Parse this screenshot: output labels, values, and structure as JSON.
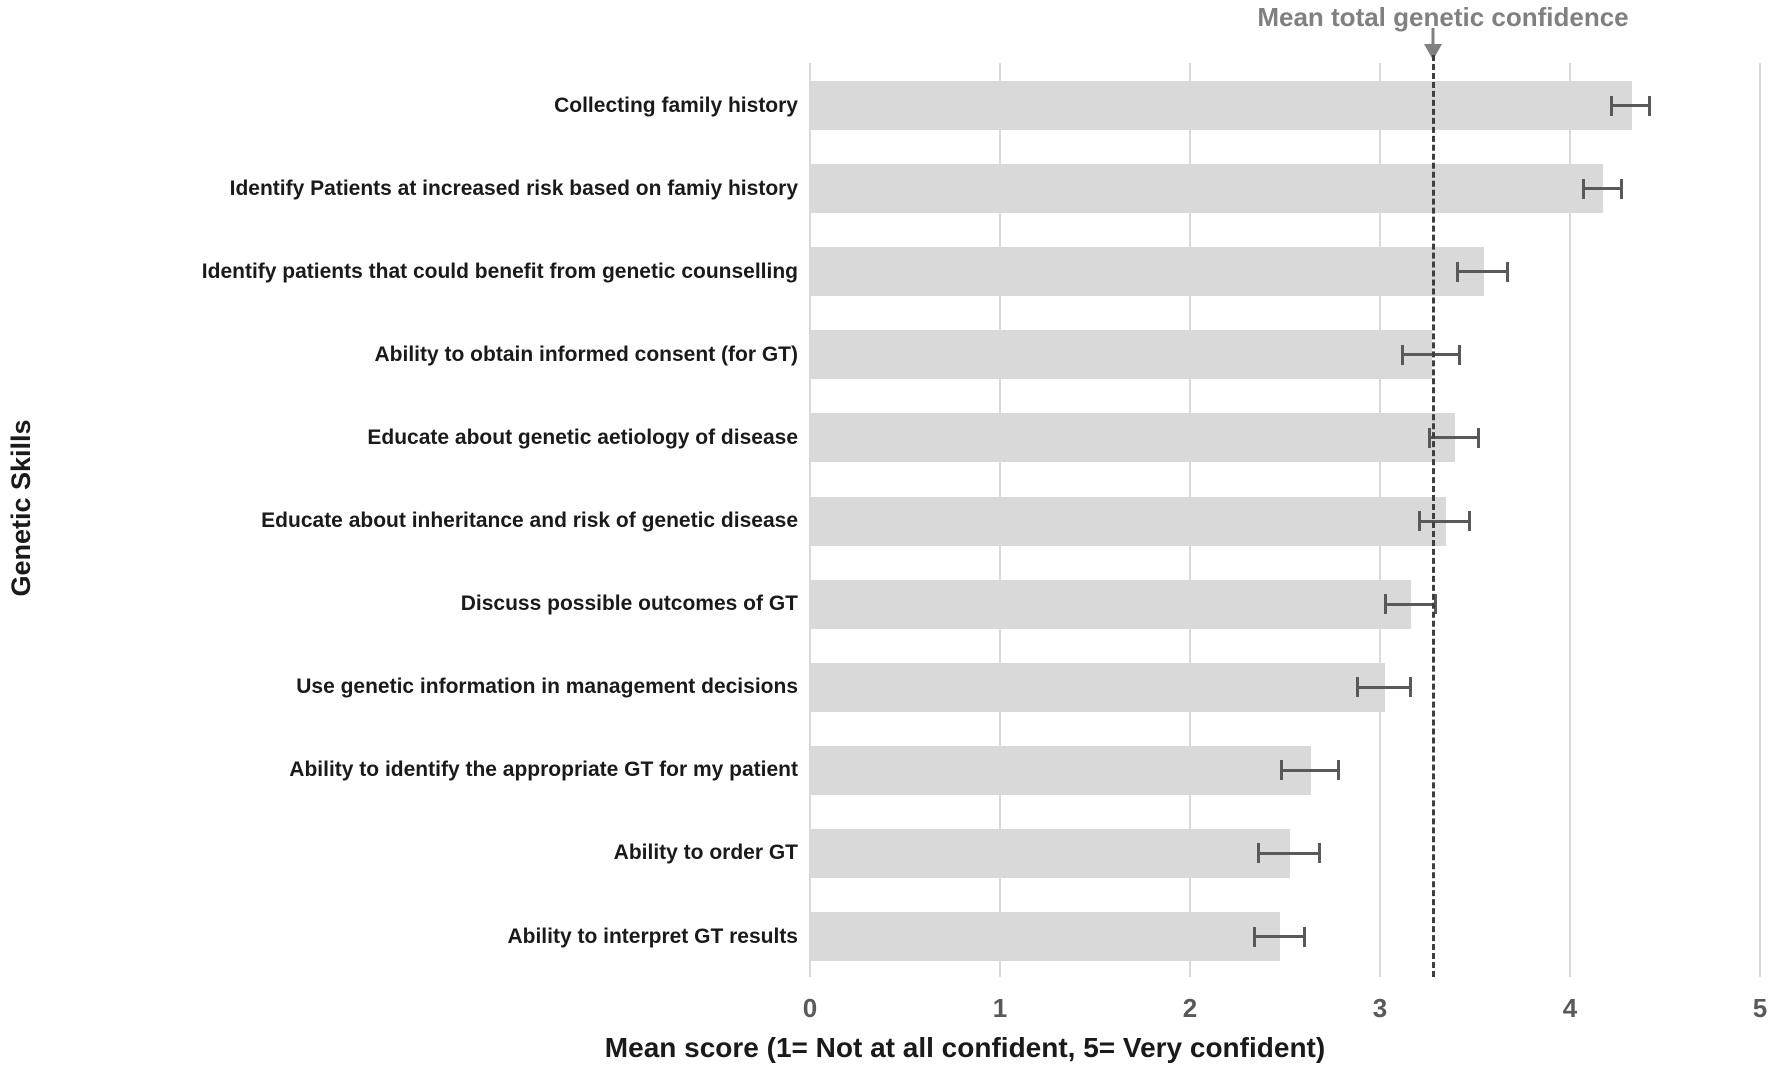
{
  "chart_data": {
    "type": "bar",
    "orientation": "horizontal",
    "categories": [
      "Collecting family history",
      "Identify Patients at increased risk based on famiy history",
      "Identify patients that could benefit from genetic counselling",
      "Ability to obtain informed consent (for GT)",
      "Educate about genetic aetiology of disease",
      "Educate about inheritance and risk of genetic disease",
      "Discuss possible outcomes of GT",
      "Use genetic information in management decisions",
      "Ability to identify the appropriate GT for my patient",
      "Ability to order GT",
      "Ability to interpret GT results"
    ],
    "values": [
      4.32,
      4.17,
      3.54,
      3.27,
      3.39,
      3.34,
      3.16,
      3.02,
      2.63,
      2.52,
      2.47
    ],
    "errors": [
      0.1,
      0.1,
      0.13,
      0.15,
      0.13,
      0.13,
      0.13,
      0.14,
      0.15,
      0.16,
      0.13
    ],
    "reference_line": {
      "label": "Mean total genetic confidence",
      "value": 3.28
    },
    "xlabel": "Mean score (1= Not at all confident, 5= Very confident)",
    "ylabel": "Genetic Skills",
    "xticks": [
      "0",
      "1",
      "2",
      "3",
      "4",
      "5"
    ],
    "xlim": [
      0,
      5
    ],
    "grid": "vertical",
    "legend": "none",
    "colors": {
      "bar_fill": "#d9d9d9",
      "gridline": "#d9d9d9",
      "error_bar": "#595959",
      "reference_line": "#3f3f3f",
      "annotation_text": "#808080",
      "tick_label": "#595959",
      "axis_text": "#1a1a1a"
    }
  }
}
